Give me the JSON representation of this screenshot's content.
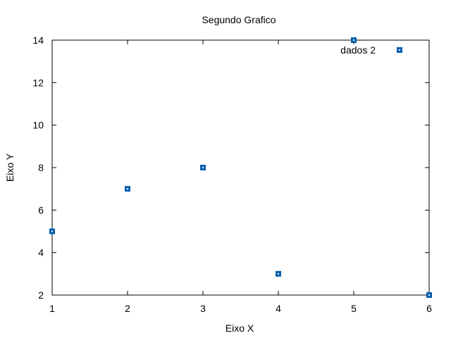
{
  "chart_data": {
    "type": "scatter",
    "title": "Segundo Grafico",
    "xlabel": "Eixo X",
    "ylabel": "Eixo Y",
    "xlim": [
      1,
      6
    ],
    "ylim": [
      2,
      14
    ],
    "xticks": [
      1,
      2,
      3,
      4,
      5,
      6
    ],
    "yticks": [
      2,
      4,
      6,
      8,
      10,
      12,
      14
    ],
    "grid": false,
    "legend_position": "top-right",
    "series": [
      {
        "name": "dados 2",
        "color": "#0060ad",
        "marker": "square",
        "x": [
          1,
          2,
          3,
          4,
          5,
          6
        ],
        "y": [
          5,
          7,
          8,
          3,
          14,
          2
        ]
      }
    ]
  }
}
